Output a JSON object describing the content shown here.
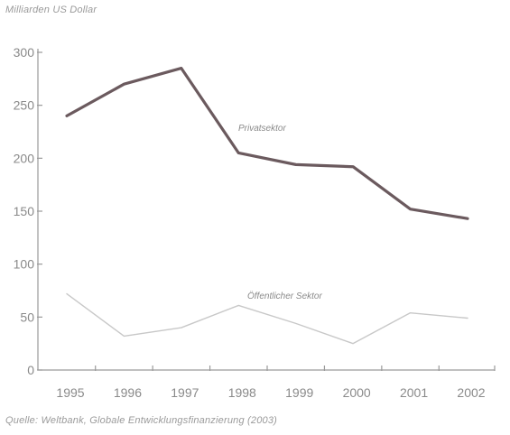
{
  "chart_data": {
    "type": "line",
    "unit_label": "Milliarden US Dollar",
    "source": "Quelle: Weltbank, Globale Entwicklungsfinanzierung (2003)",
    "x": [
      "1995",
      "1996",
      "1997",
      "1998",
      "1999",
      "2000",
      "2001",
      "2002"
    ],
    "x_tick_labels": [
      "1995",
      "1996",
      "1997",
      "1998",
      "1999",
      "2000",
      "2001",
      "2002"
    ],
    "y_ticks": [
      0,
      50,
      100,
      150,
      200,
      250,
      300
    ],
    "ylim": [
      0,
      300
    ],
    "grid": false,
    "series": [
      {
        "name": "Privatsektor",
        "values": [
          240,
          270,
          285,
          205,
          194,
          192,
          152,
          143
        ],
        "color": "#6b5a5e",
        "stroke": "thick"
      },
      {
        "name": "Öffentlicher Sektor",
        "values": [
          72,
          32,
          40,
          61,
          44,
          25,
          54,
          49
        ],
        "color": "#c8c8c8",
        "stroke": "thin"
      }
    ]
  }
}
